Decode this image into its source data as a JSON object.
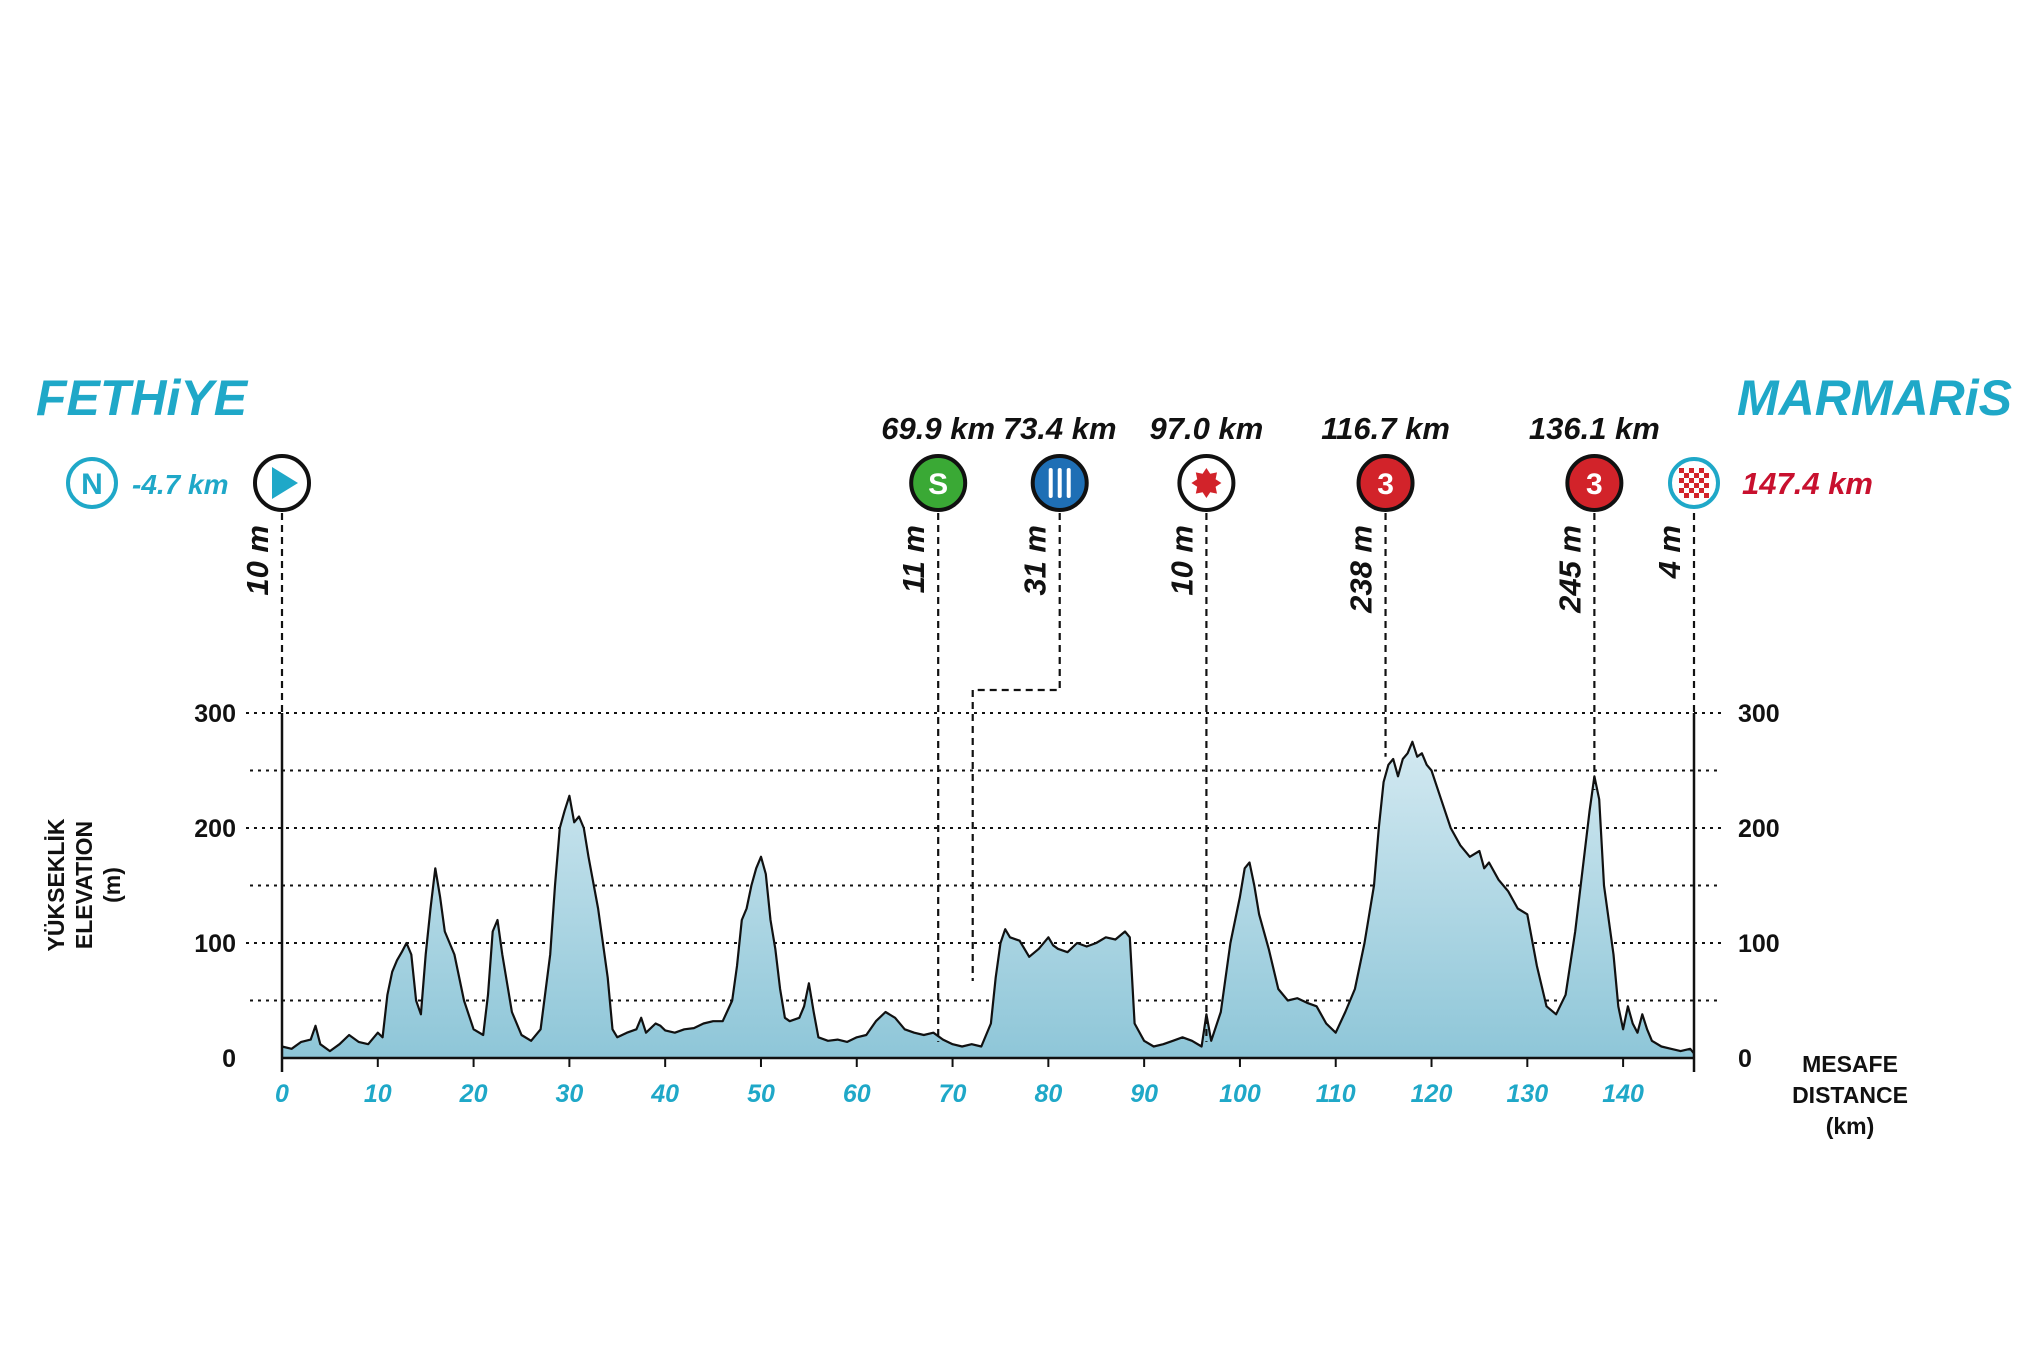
{
  "start_city": "FETHiYE",
  "finish_city": "MARMARiS",
  "neutral": {
    "badge": "N",
    "label": "-4.7 km"
  },
  "colors": {
    "accent": "#1fa8c8",
    "finish_red": "#c8102e",
    "area_top": "#d3e9f1",
    "area_bottom": "#8ec6d8",
    "sprint_green": "#3aa935",
    "feed_blue": "#1f6fb5",
    "kom_red": "#d2232a"
  },
  "chart_data": {
    "type": "area",
    "title": "",
    "xlabel_lines": [
      "MESAFE",
      "DISTANCE",
      "(km)"
    ],
    "ylabel_lines": [
      "YÜKSEKLİK",
      "ELEVATION",
      "(m)"
    ],
    "xlim": [
      0,
      147.4
    ],
    "ylim": [
      0,
      300
    ],
    "x_ticks": [
      "0",
      "10",
      "20",
      "30",
      "40",
      "50",
      "60",
      "70",
      "80",
      "90",
      "100",
      "110",
      "120",
      "130",
      "140"
    ],
    "y_ticks": [
      "0",
      "100",
      "200",
      "300"
    ],
    "grid_dotted_y": [
      50,
      150,
      250,
      300
    ],
    "profile": [
      [
        0,
        10
      ],
      [
        1,
        8
      ],
      [
        2,
        14
      ],
      [
        3,
        16
      ],
      [
        3.5,
        28
      ],
      [
        4,
        12
      ],
      [
        5,
        6
      ],
      [
        6,
        12
      ],
      [
        7,
        20
      ],
      [
        8,
        14
      ],
      [
        9,
        12
      ],
      [
        10,
        22
      ],
      [
        10.5,
        18
      ],
      [
        11,
        55
      ],
      [
        11.5,
        75
      ],
      [
        12,
        85
      ],
      [
        12.5,
        92
      ],
      [
        13,
        100
      ],
      [
        13.5,
        90
      ],
      [
        14,
        50
      ],
      [
        14.5,
        38
      ],
      [
        15,
        90
      ],
      [
        15.5,
        130
      ],
      [
        16,
        165
      ],
      [
        16.5,
        140
      ],
      [
        17,
        110
      ],
      [
        18,
        90
      ],
      [
        19,
        50
      ],
      [
        20,
        25
      ],
      [
        21,
        20
      ],
      [
        21.5,
        55
      ],
      [
        22,
        110
      ],
      [
        22.5,
        120
      ],
      [
        23,
        90
      ],
      [
        24,
        40
      ],
      [
        25,
        20
      ],
      [
        26,
        15
      ],
      [
        27,
        25
      ],
      [
        28,
        90
      ],
      [
        28.5,
        150
      ],
      [
        29,
        200
      ],
      [
        29.5,
        215
      ],
      [
        30,
        228
      ],
      [
        30.5,
        205
      ],
      [
        31,
        210
      ],
      [
        31.5,
        200
      ],
      [
        32,
        175
      ],
      [
        33,
        130
      ],
      [
        34,
        70
      ],
      [
        34.5,
        25
      ],
      [
        35,
        18
      ],
      [
        36,
        22
      ],
      [
        37,
        25
      ],
      [
        37.5,
        35
      ],
      [
        38,
        22
      ],
      [
        39,
        30
      ],
      [
        39.5,
        28
      ],
      [
        40,
        24
      ],
      [
        41,
        22
      ],
      [
        42,
        25
      ],
      [
        43,
        26
      ],
      [
        44,
        30
      ],
      [
        45,
        32
      ],
      [
        46,
        32
      ],
      [
        47,
        50
      ],
      [
        47.5,
        80
      ],
      [
        48,
        120
      ],
      [
        48.5,
        130
      ],
      [
        49,
        150
      ],
      [
        49.5,
        165
      ],
      [
        50,
        175
      ],
      [
        50.5,
        160
      ],
      [
        51,
        120
      ],
      [
        51.5,
        95
      ],
      [
        52,
        60
      ],
      [
        52.5,
        35
      ],
      [
        53,
        32
      ],
      [
        54,
        35
      ],
      [
        54.5,
        45
      ],
      [
        55,
        65
      ],
      [
        55.5,
        40
      ],
      [
        56,
        18
      ],
      [
        57,
        15
      ],
      [
        58,
        16
      ],
      [
        59,
        14
      ],
      [
        60,
        18
      ],
      [
        61,
        20
      ],
      [
        62,
        32
      ],
      [
        63,
        40
      ],
      [
        64,
        35
      ],
      [
        65,
        25
      ],
      [
        66,
        22
      ],
      [
        67,
        20
      ],
      [
        68,
        22
      ],
      [
        69,
        16
      ],
      [
        70,
        12
      ],
      [
        71,
        10
      ],
      [
        72,
        12
      ],
      [
        73,
        10
      ],
      [
        74,
        30
      ],
      [
        74.5,
        70
      ],
      [
        75,
        100
      ],
      [
        75.5,
        112
      ],
      [
        76,
        105
      ],
      [
        77,
        102
      ],
      [
        78,
        88
      ],
      [
        79,
        95
      ],
      [
        80,
        105
      ],
      [
        80.5,
        98
      ],
      [
        81,
        95
      ],
      [
        82,
        92
      ],
      [
        83,
        100
      ],
      [
        84,
        97
      ],
      [
        85,
        100
      ],
      [
        86,
        105
      ],
      [
        87,
        103
      ],
      [
        88,
        110
      ],
      [
        88.5,
        105
      ],
      [
        89,
        30
      ],
      [
        90,
        15
      ],
      [
        91,
        10
      ],
      [
        92,
        12
      ],
      [
        93,
        15
      ],
      [
        94,
        18
      ],
      [
        95,
        15
      ],
      [
        96,
        10
      ],
      [
        96.5,
        38
      ],
      [
        97,
        15
      ],
      [
        98,
        40
      ],
      [
        99,
        100
      ],
      [
        100,
        140
      ],
      [
        100.5,
        165
      ],
      [
        101,
        170
      ],
      [
        101.5,
        150
      ],
      [
        102,
        125
      ],
      [
        103,
        95
      ],
      [
        104,
        60
      ],
      [
        105,
        50
      ],
      [
        106,
        52
      ],
      [
        107,
        48
      ],
      [
        108,
        45
      ],
      [
        109,
        30
      ],
      [
        110,
        22
      ],
      [
        111,
        40
      ],
      [
        112,
        60
      ],
      [
        113,
        100
      ],
      [
        114,
        150
      ],
      [
        114.5,
        200
      ],
      [
        115,
        240
      ],
      [
        115.5,
        255
      ],
      [
        116,
        260
      ],
      [
        116.5,
        245
      ],
      [
        117,
        260
      ],
      [
        117.5,
        265
      ],
      [
        118,
        275
      ],
      [
        118.5,
        262
      ],
      [
        119,
        265
      ],
      [
        119.5,
        255
      ],
      [
        120,
        250
      ],
      [
        121,
        225
      ],
      [
        122,
        200
      ],
      [
        123,
        185
      ],
      [
        124,
        175
      ],
      [
        125,
        180
      ],
      [
        125.5,
        165
      ],
      [
        126,
        170
      ],
      [
        127,
        155
      ],
      [
        128,
        145
      ],
      [
        129,
        130
      ],
      [
        130,
        125
      ],
      [
        131,
        80
      ],
      [
        132,
        45
      ],
      [
        133,
        38
      ],
      [
        134,
        55
      ],
      [
        135,
        110
      ],
      [
        136,
        180
      ],
      [
        136.5,
        215
      ],
      [
        137,
        245
      ],
      [
        137.5,
        225
      ],
      [
        138,
        150
      ],
      [
        139,
        90
      ],
      [
        139.5,
        45
      ],
      [
        140,
        25
      ],
      [
        140.5,
        45
      ],
      [
        141,
        30
      ],
      [
        141.5,
        22
      ],
      [
        142,
        38
      ],
      [
        142.5,
        25
      ],
      [
        143,
        15
      ],
      [
        144,
        10
      ],
      [
        145,
        8
      ],
      [
        146,
        6
      ],
      [
        147,
        8
      ],
      [
        147.4,
        4
      ]
    ]
  },
  "markers": [
    {
      "km_value": 0,
      "km_label": "",
      "alt_label": "10 m",
      "icon": "start-play-icon"
    },
    {
      "km_value": 68.5,
      "km_label": "69.9 km",
      "alt_label": "11 m",
      "icon": "sprint-icon",
      "icon_text": "S"
    },
    {
      "km_value": 72,
      "km_label": "73.4 km",
      "alt_label": "31 m",
      "icon": "feed-zone-icon"
    },
    {
      "km_value": 96.5,
      "km_label": "97.0 km",
      "alt_label": "10 m",
      "icon": "bonus-star-icon"
    },
    {
      "km_value": 115.2,
      "km_label": "116.7 km",
      "alt_label": "238 m",
      "icon": "kom-cat3-icon",
      "icon_text": "3"
    },
    {
      "km_value": 137,
      "km_label": "136.1 km",
      "alt_label": "245 m",
      "icon": "kom-cat3-icon",
      "icon_text": "3"
    },
    {
      "km_value": 147.4,
      "km_label": "147.4 km",
      "alt_label": "4 m",
      "icon": "finish-flag-icon"
    }
  ]
}
